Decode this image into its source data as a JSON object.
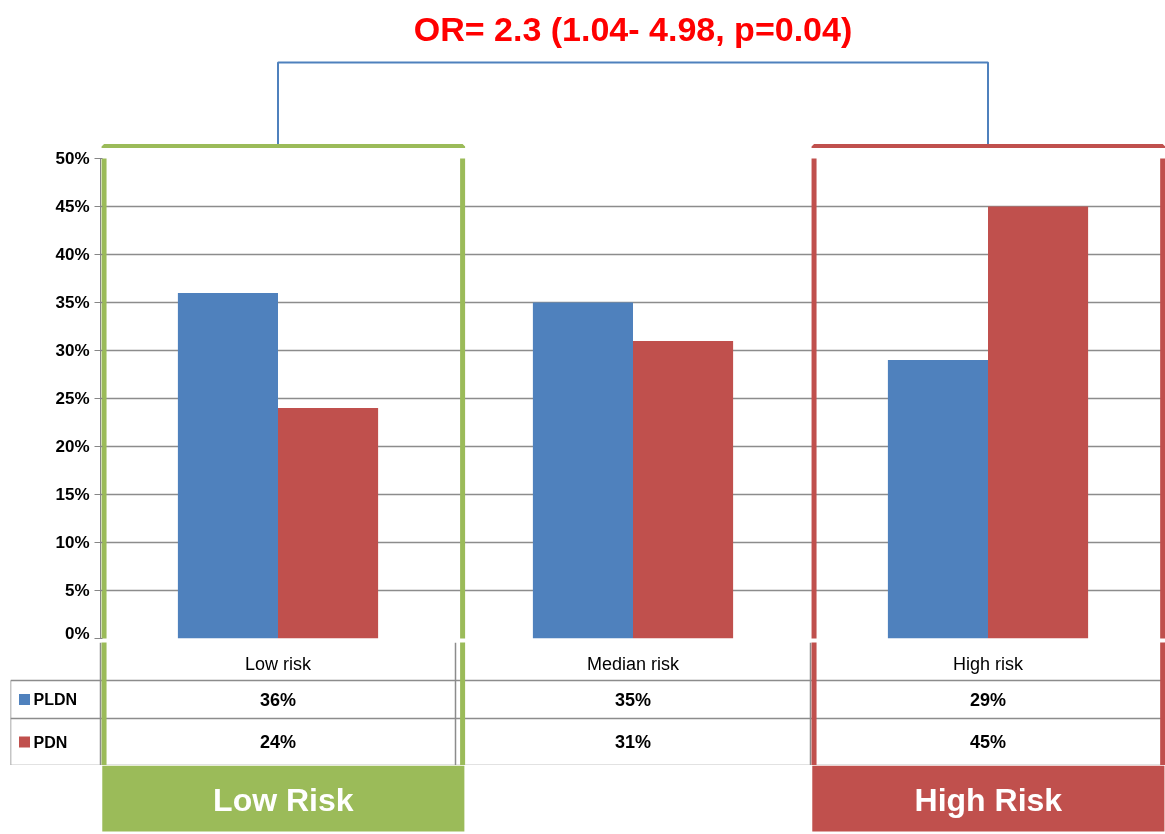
{
  "chart_data": {
    "type": "bar",
    "categories": [
      "Low risk",
      "Median risk",
      "High risk"
    ],
    "series": [
      {
        "name": "PLDN",
        "color": "#4f81bd",
        "values": [
          36,
          35,
          29
        ],
        "value_labels": [
          "36%",
          "35%",
          "29%"
        ]
      },
      {
        "name": "PDN",
        "color": "#c0504d",
        "values": [
          24,
          31,
          45
        ],
        "value_labels": [
          "24%",
          "31%",
          "45%"
        ]
      }
    ],
    "ylim": [
      0,
      50
    ],
    "yticks": [
      {
        "value": 0,
        "label": "0%"
      },
      {
        "value": 5,
        "label": "5%"
      },
      {
        "value": 10,
        "label": "10%"
      },
      {
        "value": 15,
        "label": "15%"
      },
      {
        "value": 20,
        "label": "20%"
      },
      {
        "value": 25,
        "label": "25%"
      },
      {
        "value": 30,
        "label": "30%"
      },
      {
        "value": 35,
        "label": "35%"
      },
      {
        "value": 40,
        "label": "40%"
      },
      {
        "value": 45,
        "label": "45%"
      },
      {
        "value": 50,
        "label": "50%"
      }
    ],
    "grid": "y",
    "legend": "bottom left",
    "annotations": [
      "OR= 2.3 (1.04- 4.98, p=0.04)",
      "Low Risk",
      "High Risk"
    ]
  }
}
